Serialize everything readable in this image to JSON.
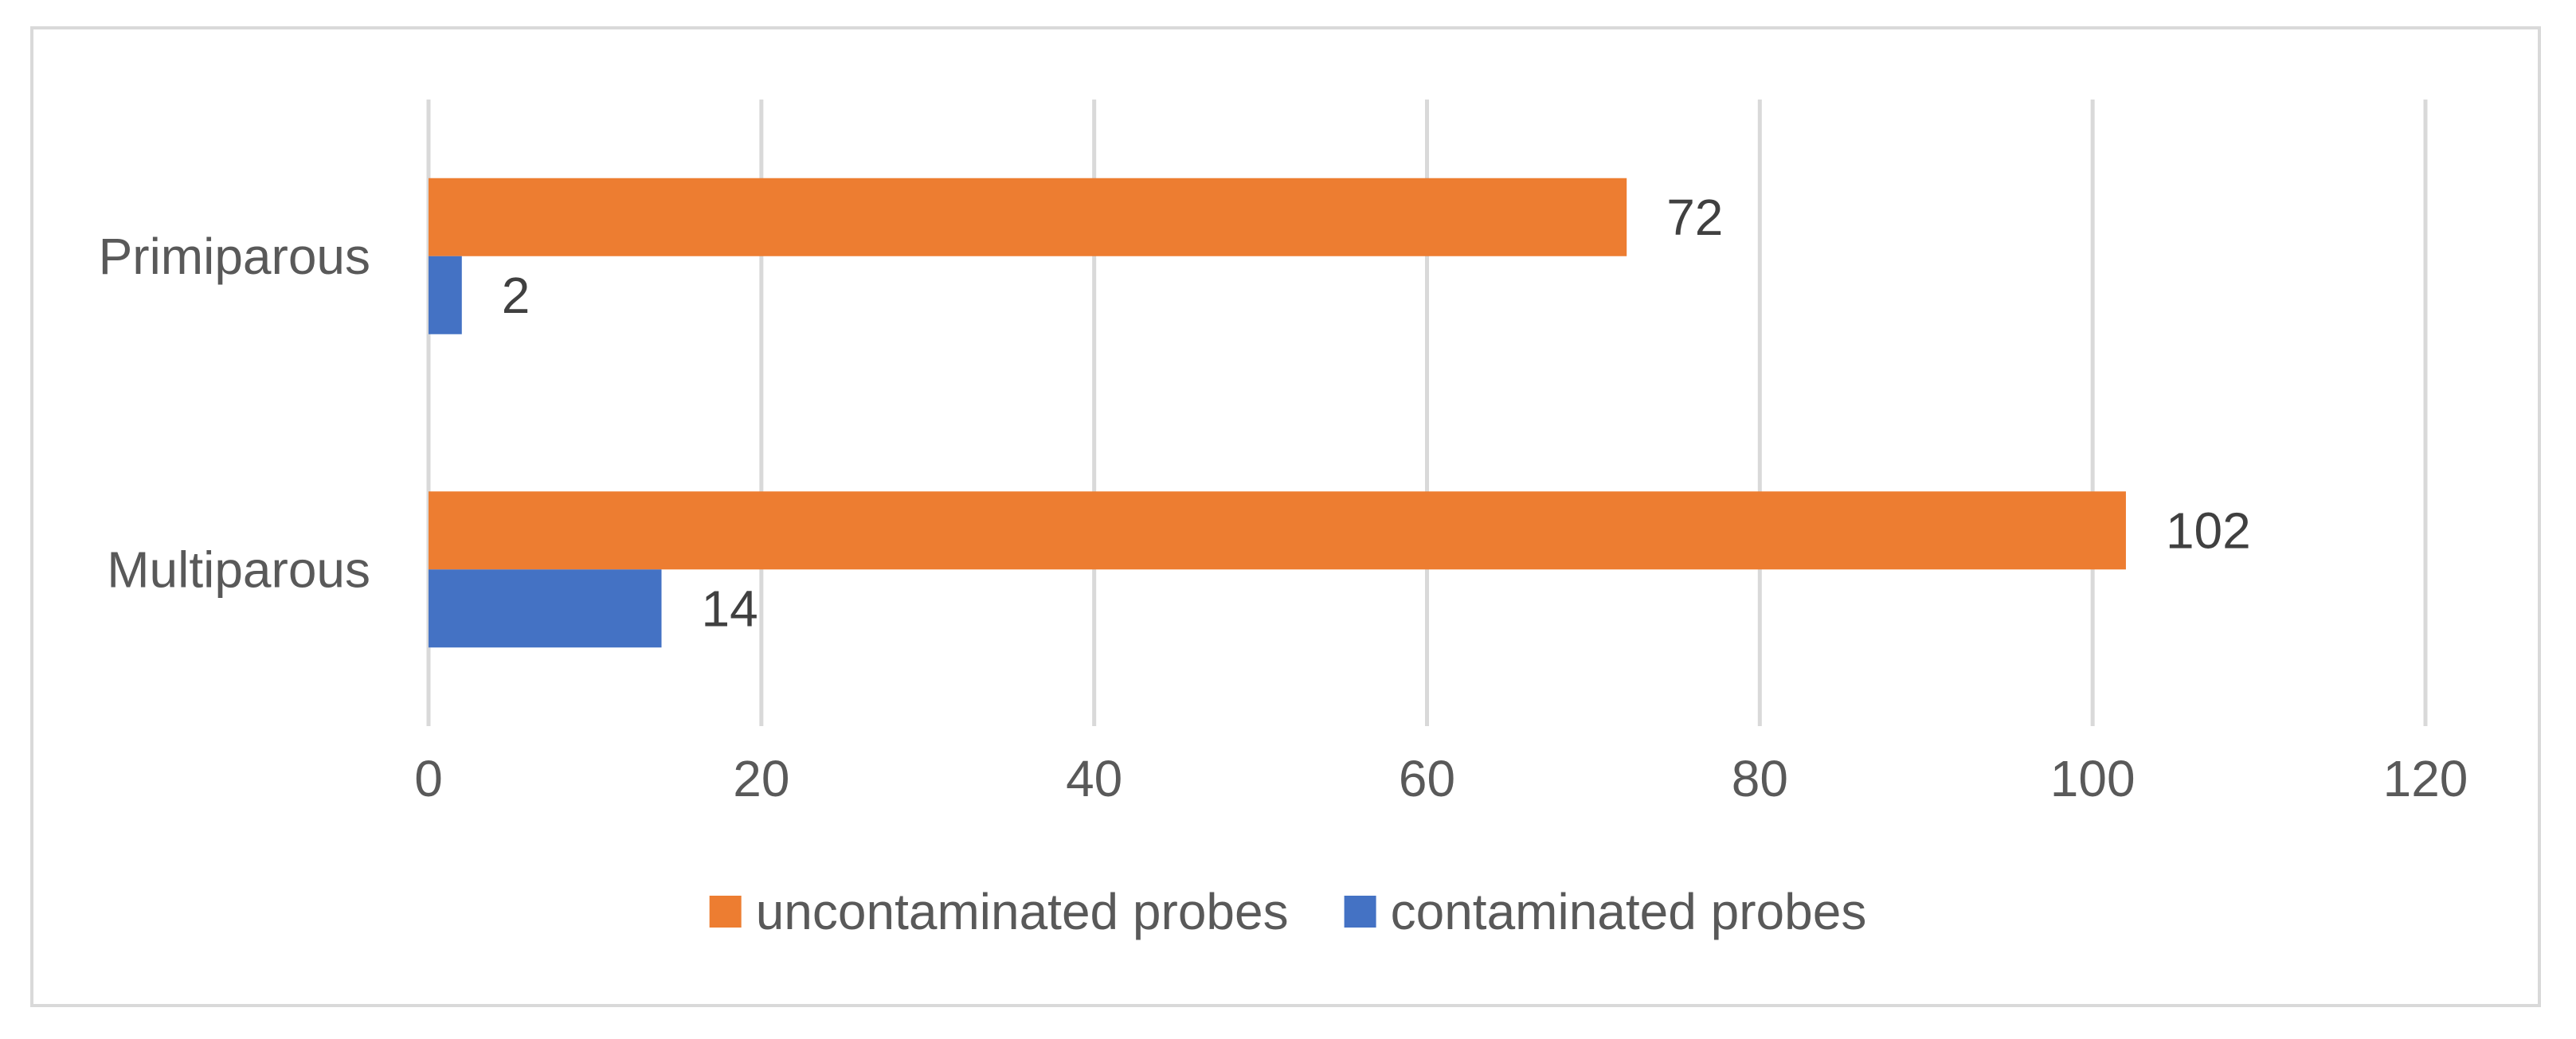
{
  "chart_data": {
    "type": "bar",
    "orientation": "horizontal",
    "title": "",
    "xlabel": "",
    "ylabel": "",
    "categories": [
      "Primiparous",
      "Multiparous"
    ],
    "series": [
      {
        "name": "uncontaminated probes",
        "values": [
          72,
          102
        ],
        "color": "#ED7D31"
      },
      {
        "name": "contaminated probes",
        "values": [
          2,
          14
        ],
        "color": "#4472C4"
      }
    ],
    "xlim": [
      0,
      120
    ],
    "xticks": [
      0,
      20,
      40,
      60,
      80,
      100,
      120
    ],
    "grid": true,
    "grid_color": "#d9d9d9",
    "legend_position": "bottom",
    "data_labels": true
  }
}
